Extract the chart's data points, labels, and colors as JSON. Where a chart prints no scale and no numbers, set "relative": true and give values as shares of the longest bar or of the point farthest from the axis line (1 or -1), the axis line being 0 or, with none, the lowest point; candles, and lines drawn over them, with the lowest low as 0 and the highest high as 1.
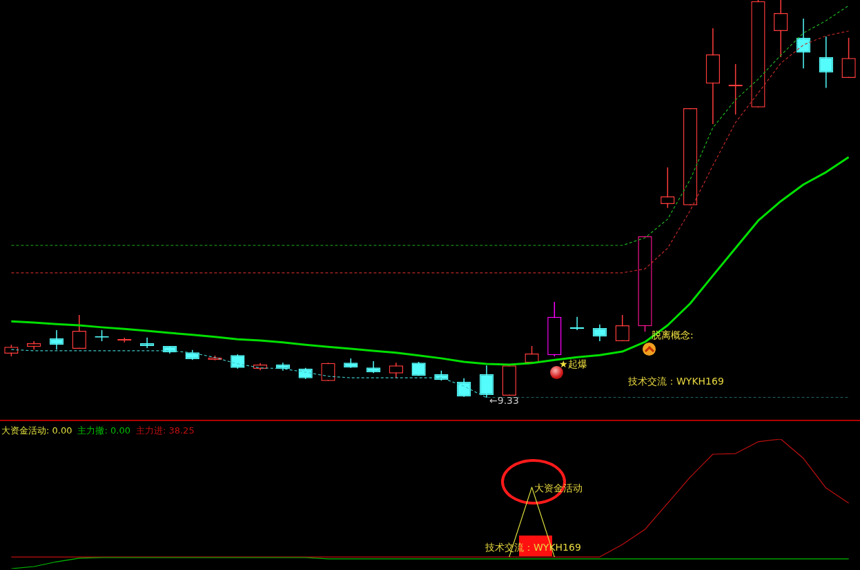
{
  "chart_data": [
    {
      "type": "candlestick",
      "relative": true,
      "categories": [
        null,
        null,
        null,
        null,
        null,
        null,
        null,
        null,
        null,
        null,
        null,
        null,
        null,
        null,
        null,
        null,
        null,
        null,
        null,
        null,
        null,
        null,
        null,
        null,
        null,
        null,
        null,
        null,
        null,
        null,
        null,
        null,
        null,
        null,
        null,
        null,
        null,
        null
      ],
      "ohlc": [
        [
          0.111,
          0.133,
          0.104,
          0.128
        ],
        [
          0.128,
          0.142,
          0.121,
          0.137
        ],
        [
          0.149,
          0.17,
          0.121,
          0.133
        ],
        [
          0.123,
          0.208,
          0.123,
          0.168
        ],
        [
          0.154,
          0.17,
          0.142,
          0.151
        ],
        [
          0.144,
          0.151,
          0.139,
          0.147
        ],
        [
          0.137,
          0.151,
          0.125,
          0.13
        ],
        [
          0.13,
          0.13,
          0.111,
          0.114
        ],
        [
          0.114,
          0.12,
          0.095,
          0.097
        ],
        [
          0.095,
          0.106,
          0.094,
          0.101
        ],
        [
          0.107,
          0.109,
          0.073,
          0.075
        ],
        [
          0.073,
          0.087,
          0.069,
          0.083
        ],
        [
          0.083,
          0.088,
          0.068,
          0.073
        ],
        [
          0.073,
          0.075,
          0.047,
          0.049
        ],
        [
          0.042,
          0.088,
          0.042,
          0.087
        ],
        [
          0.088,
          0.099,
          0.075,
          0.076
        ],
        [
          0.076,
          0.092,
          0.062,
          0.064
        ],
        [
          0.061,
          0.088,
          0.049,
          0.081
        ],
        [
          0.088,
          0.09,
          0.055,
          0.055
        ],
        [
          0.059,
          0.068,
          0.043,
          0.045
        ],
        [
          0.04,
          0.049,
          0.002,
          0.003
        ],
        [
          0.059,
          0.081,
          0,
          0.007
        ],
        [
          0.005,
          0.081,
          0.005,
          0.081
        ],
        [
          0.088,
          0.13,
          0.088,
          0.111
        ],
        [
          0.107,
          0.241,
          0.104,
          0.203
        ],
        [
          0.177,
          0.203,
          0.17,
          0.173
        ],
        [
          0.175,
          0.184,
          0.142,
          0.154
        ],
        [
          0.142,
          0.208,
          0.142,
          0.182
        ],
        [
          0.18,
          0.406,
          0.166,
          0.406
        ],
        [
          0.487,
          0.579,
          0.477,
          0.506
        ],
        [
          0.484,
          0.728,
          0.484,
          0.728
        ],
        [
          0.79,
          0.929,
          0.688,
          0.863
        ],
        [
          0.783,
          0.839,
          0.712,
          0.787
        ],
        [
          0.73,
          1,
          0.73,
          0.997
        ],
        [
          0.922,
          1,
          0.856,
          0.967
        ],
        [
          0.905,
          0.953,
          0.828,
          0.868
        ],
        [
          0.856,
          0.908,
          0.779,
          0.818
        ],
        [
          0.804,
          0.905,
          0.804,
          0.854
        ]
      ],
      "colors": [
        "#ff3c3c",
        "#ff3c3c",
        "#54fcfc",
        "#ff3c3c",
        "#54fcfc",
        "#ff3c3c",
        "#54fcfc",
        "#54fcfc",
        "#54fcfc",
        "#ff3c3c",
        "#54fcfc",
        "#ff3c3c",
        "#54fcfc",
        "#54fcfc",
        "#ff3c3c",
        "#54fcfc",
        "#54fcfc",
        "#ff3c3c",
        "#54fcfc",
        "#54fcfc",
        "#54fcfc",
        "#54fcfc",
        "#ff3c3c",
        "#ff3c3c",
        "#ff00ff",
        "#54fcfc",
        "#54fcfc",
        "#ff3c3c",
        "#ff1493",
        "#ff3c3c",
        "#ff3c3c",
        "#ff3c3c",
        "#ff3c3c",
        "#ff3c3c",
        "#ff3c3c",
        "#54fcfc",
        "#54fcfc",
        "#ff3c3c"
      ],
      "series": [
        {
          "type": "line",
          "color": "#00e000",
          "line_style": "solid",
          "values": [
            0.192,
            0.189,
            0.185,
            0.182,
            0.177,
            0.173,
            0.168,
            0.163,
            0.158,
            0.153,
            0.147,
            0.144,
            0.139,
            0.133,
            0.128,
            0.123,
            0.118,
            0.113,
            0.106,
            0.099,
            0.09,
            0.085,
            0.083,
            0.087,
            0.095,
            0.102,
            0.107,
            0.116,
            0.14,
            0.182,
            0.237,
            0.307,
            0.376,
            0.445,
            0.494,
            0.536,
            0.567,
            0.605
          ]
        },
        {
          "type": "line",
          "color": "#40c8c8",
          "line_style": "dashed",
          "values": [
            0.121,
            0.118,
            0.118,
            0.118,
            0.118,
            0.118,
            0.118,
            0.118,
            0.113,
            0.101,
            0.085,
            0.075,
            0.073,
            0.064,
            0.054,
            0.05,
            0.05,
            0.05,
            0.05,
            0.05,
            0.029,
            0,
            0,
            0,
            0,
            0,
            0,
            0,
            0,
            0,
            0,
            0,
            0,
            0,
            0,
            0,
            0,
            0
          ]
        },
        {
          "type": "line",
          "color": "#20b020",
          "line_style": "dashed",
          "values": [
            0.383,
            0.383,
            0.383,
            0.383,
            0.383,
            0.383,
            0.383,
            0.383,
            0.383,
            0.383,
            0.383,
            0.383,
            0.383,
            0.383,
            0.383,
            0.383,
            0.383,
            0.383,
            0.383,
            0.383,
            0.383,
            0.383,
            0.383,
            0.383,
            0.383,
            0.383,
            0.383,
            0.383,
            0.402,
            0.449,
            0.549,
            0.679,
            0.749,
            0.801,
            0.861,
            0.917,
            0.948,
            0.986
          ]
        },
        {
          "type": "line",
          "color": "#c02828",
          "line_style": "dashed",
          "values": [
            0.314,
            0.314,
            0.314,
            0.314,
            0.314,
            0.314,
            0.314,
            0.314,
            0.314,
            0.314,
            0.314,
            0.314,
            0.314,
            0.314,
            0.314,
            0.314,
            0.314,
            0.314,
            0.314,
            0.314,
            0.314,
            0.314,
            0.314,
            0.314,
            0.314,
            0.314,
            0.314,
            0.314,
            0.324,
            0.376,
            0.471,
            0.584,
            0.692,
            0.766,
            0.841,
            0.887,
            0.91,
            0.922
          ]
        }
      ],
      "annotations": [
        "←9.33",
        "★起爆",
        "脱离概念:",
        "技术交流：WYKH169"
      ]
    },
    {
      "type": "line",
      "relative": true,
      "categories": [
        null,
        null,
        null,
        null,
        null,
        null,
        null,
        null,
        null,
        null,
        null,
        null,
        null,
        null,
        null,
        null,
        null,
        null,
        null,
        null,
        null,
        null,
        null,
        null,
        null,
        null,
        null,
        null,
        null,
        null,
        null,
        null,
        null,
        null,
        null,
        null,
        null,
        null
      ],
      "series": [
        {
          "name": "大资金活动: 0.00",
          "type": "line",
          "color": "#e0e040",
          "values": [
            null,
            null,
            null,
            null,
            null,
            null,
            null,
            null,
            null,
            null,
            null,
            null,
            null,
            null,
            null,
            null,
            null,
            null,
            null,
            null,
            null,
            null,
            0.09,
            0.628,
            0.09,
            null,
            null,
            null,
            null,
            null,
            null,
            null,
            null,
            null,
            null,
            null,
            null,
            null
          ]
        },
        {
          "name": "主力撤: 0.00",
          "type": "line",
          "color": "#00c000",
          "values": [
            0,
            0.016,
            0.053,
            0.08,
            0.085,
            0.085,
            0.085,
            0.085,
            0.085,
            0.085,
            0.085,
            0.085,
            0.085,
            0.085,
            0.075,
            0.075,
            0.075,
            0.075,
            0.075,
            0.075,
            0.075,
            0.075,
            0.075,
            0.075,
            0.075,
            0.075,
            0.075,
            0.075,
            0.075,
            0.075,
            0.075,
            0.075,
            0.075,
            0.075,
            0.075,
            0.075,
            0.075,
            0.075
          ]
        },
        {
          "name": "主力进: 38.25",
          "type": "line",
          "color": "#c01010",
          "values": [
            0.09,
            0.09,
            0.09,
            0.09,
            0.09,
            0.09,
            0.09,
            0.09,
            0.09,
            0.09,
            0.09,
            0.09,
            0.09,
            0.09,
            0.09,
            0.09,
            0.09,
            0.09,
            0.09,
            0.09,
            0.09,
            0.09,
            0.09,
            0.09,
            0.09,
            0.09,
            0.09,
            0.186,
            0.303,
            0.505,
            0.707,
            0.883,
            0.888,
            0.979,
            1,
            0.851,
            0.622,
            0.505
          ]
        }
      ],
      "annotations": [
        "大资金活动",
        "技术交流：WYKH169"
      ]
    }
  ]
}
